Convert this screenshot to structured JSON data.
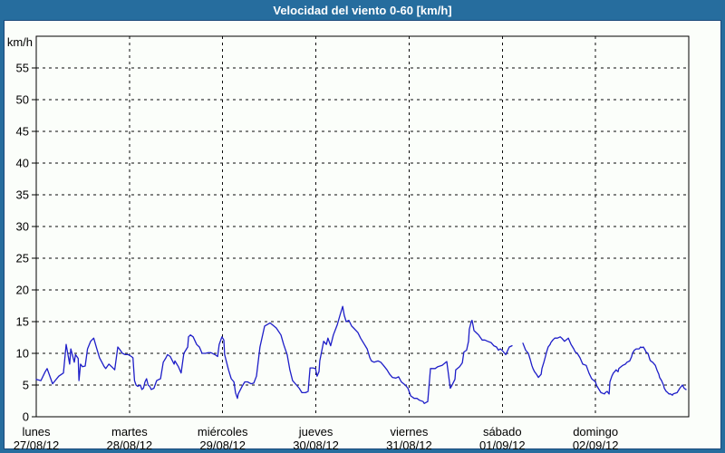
{
  "window": {
    "title": "Velocidad del viento 0-60 [km/h]"
  },
  "colors": {
    "titlebar_bg": "#266d9e",
    "window_border": "#266d9e",
    "content_bg": "#fbfefa",
    "frame_line": "#1b4a7a",
    "grid": "#0a0a0a",
    "series": "#1e1ec8",
    "title_text": "#ffffff",
    "label_text": "#000000"
  },
  "chart_data": {
    "type": "line",
    "title": "Velocidad del viento 0-60 [km/h]",
    "xlabel": "",
    "ylabel": "km/h",
    "ylim": [
      0,
      60
    ],
    "yticks": [
      0,
      5,
      10,
      15,
      20,
      25,
      30,
      35,
      40,
      45,
      50,
      55
    ],
    "x_unit": "hours",
    "xlim": [
      0,
      168
    ],
    "grid": "dashed",
    "legend": "none",
    "xticks": [
      {
        "hour": 0,
        "day": "lunes",
        "date": "27/08/12"
      },
      {
        "hour": 24,
        "day": "martes",
        "date": "28/08/12"
      },
      {
        "hour": 48,
        "day": "miércoles",
        "date": "29/08/12"
      },
      {
        "hour": 72,
        "day": "jueves",
        "date": "30/08/12"
      },
      {
        "hour": 96,
        "day": "viernes",
        "date": "31/08/12"
      },
      {
        "hour": 120,
        "day": "sábado",
        "date": "01/09/12"
      },
      {
        "hour": 144,
        "day": "domingo",
        "date": "02/09/12"
      }
    ],
    "series": [
      {
        "name": "velocidad del viento",
        "color": "#1e1ec8",
        "points": [
          [
            0,
            5.9
          ],
          [
            1.2,
            5.7
          ],
          [
            2.3,
            7.1
          ],
          [
            2.8,
            7.6
          ],
          [
            4.2,
            5.2
          ],
          [
            5.8,
            6.4
          ],
          [
            7,
            6.9
          ],
          [
            7.7,
            11.4
          ],
          [
            8.6,
            8.3
          ],
          [
            8.9,
            10.7
          ],
          [
            9.8,
            8.6
          ],
          [
            10.1,
            9.8
          ],
          [
            10.8,
            9.2
          ],
          [
            11,
            5.7
          ],
          [
            11.4,
            8.3
          ],
          [
            11.9,
            7.9
          ],
          [
            12.6,
            8
          ],
          [
            13.2,
            10.7
          ],
          [
            14,
            11.9
          ],
          [
            14.8,
            12.4
          ],
          [
            15.6,
            10.7
          ],
          [
            16.3,
            9.3
          ],
          [
            17.5,
            7.9
          ],
          [
            17.9,
            7.6
          ],
          [
            18.7,
            8.3
          ],
          [
            19.4,
            7.9
          ],
          [
            20.2,
            7.4
          ],
          [
            21,
            11
          ],
          [
            21.4,
            10.7
          ],
          [
            22.2,
            10
          ],
          [
            22.9,
            9.8
          ],
          [
            23.7,
            9.8
          ],
          [
            24.5,
            9.5
          ],
          [
            24.9,
            9.3
          ],
          [
            25.3,
            5.7
          ],
          [
            25.7,
            5
          ],
          [
            26.1,
            4.8
          ],
          [
            26.8,
            5
          ],
          [
            27.2,
            4.3
          ],
          [
            27.6,
            4.5
          ],
          [
            28,
            5.5
          ],
          [
            28.4,
            6
          ],
          [
            28.8,
            5
          ],
          [
            29.2,
            4.8
          ],
          [
            29.6,
            4.3
          ],
          [
            30.3,
            4.5
          ],
          [
            31,
            5.7
          ],
          [
            32,
            6
          ],
          [
            32.7,
            8.6
          ],
          [
            33.4,
            9.3
          ],
          [
            33.8,
            9.8
          ],
          [
            34.5,
            9.5
          ],
          [
            35.5,
            8.3
          ],
          [
            35.7,
            8.8
          ],
          [
            36.6,
            7.9
          ],
          [
            37.3,
            6.9
          ],
          [
            38,
            10
          ],
          [
            39,
            11
          ],
          [
            39.2,
            12.6
          ],
          [
            39.7,
            12.9
          ],
          [
            40.4,
            12.6
          ],
          [
            41.3,
            11.4
          ],
          [
            42,
            11
          ],
          [
            42.7,
            10
          ],
          [
            43.6,
            10
          ],
          [
            44.3,
            10.1
          ],
          [
            45,
            10.1
          ],
          [
            46,
            9.8
          ],
          [
            46.7,
            9.5
          ],
          [
            47.1,
            11.4
          ],
          [
            47.8,
            12.6
          ],
          [
            48.3,
            12.1
          ],
          [
            48.5,
            9.8
          ],
          [
            49.5,
            7.4
          ],
          [
            50.2,
            6
          ],
          [
            50.9,
            5.5
          ],
          [
            51.3,
            3.8
          ],
          [
            51.8,
            2.9
          ],
          [
            52,
            3.6
          ],
          [
            53,
            4.8
          ],
          [
            53.7,
            5.5
          ],
          [
            54.4,
            5.5
          ],
          [
            55.3,
            5.2
          ],
          [
            56,
            5.3
          ],
          [
            56.7,
            6.4
          ],
          [
            57.6,
            11
          ],
          [
            58.8,
            14.3
          ],
          [
            60.2,
            14.8
          ],
          [
            61.8,
            14
          ],
          [
            63,
            12.9
          ],
          [
            63.7,
            11.4
          ],
          [
            64.6,
            9.8
          ],
          [
            65.3,
            7.4
          ],
          [
            66,
            5.7
          ],
          [
            67,
            5
          ],
          [
            67.7,
            4.5
          ],
          [
            68.4,
            3.8
          ],
          [
            69.3,
            3.8
          ],
          [
            70,
            4
          ],
          [
            70.5,
            7.7
          ],
          [
            71.2,
            7.7
          ],
          [
            71.9,
            7.6
          ],
          [
            72.3,
            6.4
          ],
          [
            72.8,
            7.1
          ],
          [
            73,
            8.8
          ],
          [
            74,
            11.9
          ],
          [
            74.7,
            11.4
          ],
          [
            75.1,
            12.4
          ],
          [
            75.8,
            11.2
          ],
          [
            76.5,
            12.9
          ],
          [
            77.5,
            14.5
          ],
          [
            78.2,
            16
          ],
          [
            78.9,
            17.4
          ],
          [
            79.3,
            16
          ],
          [
            79.8,
            15
          ],
          [
            80.5,
            15.2
          ],
          [
            81.2,
            14.3
          ],
          [
            81.7,
            14
          ],
          [
            82.8,
            13.3
          ],
          [
            83.5,
            12.4
          ],
          [
            84.5,
            11.4
          ],
          [
            85.2,
            10.7
          ],
          [
            85.9,
            9.3
          ],
          [
            86.3,
            8.8
          ],
          [
            87,
            8.6
          ],
          [
            88,
            8.8
          ],
          [
            88.7,
            8.6
          ],
          [
            89.4,
            8.1
          ],
          [
            90.3,
            7.4
          ],
          [
            91,
            6.7
          ],
          [
            91.7,
            6.2
          ],
          [
            92.6,
            6.1
          ],
          [
            93.3,
            6.3
          ],
          [
            94,
            5.5
          ],
          [
            95,
            5
          ],
          [
            95.7,
            4.5
          ],
          [
            96.4,
            3.3
          ],
          [
            97.3,
            2.9
          ],
          [
            98,
            2.9
          ],
          [
            98.7,
            2.6
          ],
          [
            99.6,
            2.4
          ],
          [
            99.9,
            2.1
          ],
          [
            100.8,
            2.4
          ],
          [
            101.5,
            7.6
          ],
          [
            102.7,
            7.6
          ],
          [
            103.4,
            7.9
          ],
          [
            104.5,
            8.1
          ],
          [
            105.5,
            8.6
          ],
          [
            105.7,
            8.7
          ],
          [
            106.6,
            4.5
          ],
          [
            106.9,
            4.8
          ],
          [
            107.8,
            5.9
          ],
          [
            108,
            7.4
          ],
          [
            109,
            7.9
          ],
          [
            109.7,
            8.5
          ],
          [
            110.1,
            10.2
          ],
          [
            110.8,
            10.5
          ],
          [
            111.3,
            11.9
          ],
          [
            111.5,
            13.8
          ],
          [
            112,
            15
          ],
          [
            112.2,
            15.2
          ],
          [
            112.5,
            14.3
          ],
          [
            112.7,
            13.6
          ],
          [
            113.2,
            13.3
          ],
          [
            113.9,
            12.9
          ],
          [
            114.8,
            12.1
          ],
          [
            115.5,
            12.1
          ],
          [
            116.2,
            11.9
          ],
          [
            117.1,
            11.7
          ],
          [
            117.8,
            11.2
          ],
          [
            118.5,
            11
          ],
          [
            119,
            10.5
          ],
          [
            119.5,
            10.7
          ],
          [
            119.9,
            10.5
          ],
          [
            120.9,
            9.8
          ],
          [
            121.8,
            11
          ],
          [
            122.5,
            11.2
          ],
          null,
          [
            125.3,
            11.6
          ],
          [
            126,
            10.5
          ],
          [
            126.7,
            10
          ],
          [
            127.2,
            9
          ],
          [
            127.6,
            8.1
          ],
          [
            127.9,
            7.6
          ],
          [
            128.3,
            7.1
          ],
          [
            128.8,
            6.7
          ],
          [
            129.3,
            6.2
          ],
          [
            130,
            6.7
          ],
          [
            130.2,
            7.6
          ],
          [
            130.7,
            8.6
          ],
          [
            131.1,
            9.5
          ],
          [
            131.4,
            10.2
          ],
          [
            131.8,
            11
          ],
          [
            132.3,
            11.4
          ],
          [
            132.5,
            11.7
          ],
          [
            133,
            12.1
          ],
          [
            133.5,
            12.4
          ],
          [
            134.2,
            12.4
          ],
          [
            134.9,
            12.6
          ],
          [
            135.3,
            12.4
          ],
          [
            136,
            11.9
          ],
          [
            137,
            12.4
          ],
          [
            137.2,
            12.1
          ],
          [
            137.7,
            11.4
          ],
          [
            138.1,
            11
          ],
          [
            138.4,
            10.7
          ],
          [
            138.8,
            10.2
          ],
          [
            139.3,
            10
          ],
          [
            139.5,
            9.8
          ],
          [
            140,
            9.3
          ],
          [
            140.7,
            8.3
          ],
          [
            141.6,
            8.1
          ],
          [
            142.3,
            6.9
          ],
          [
            143,
            6
          ],
          [
            144,
            5.5
          ],
          [
            144.2,
            5
          ],
          [
            144.7,
            4.5
          ],
          [
            145.4,
            3.8
          ],
          [
            146.3,
            3.6
          ],
          [
            146.5,
            3.8
          ],
          [
            147,
            4
          ],
          [
            147.5,
            3.6
          ],
          [
            147.7,
            5.5
          ],
          [
            148.2,
            6.4
          ],
          [
            148.6,
            6.9
          ],
          [
            148.9,
            7.1
          ],
          [
            149.3,
            7.4
          ],
          [
            149.8,
            7.1
          ],
          [
            150,
            7.6
          ],
          [
            151,
            8.1
          ],
          [
            151.7,
            8.3
          ],
          [
            152.1,
            8.6
          ],
          [
            152.8,
            8.8
          ],
          [
            153.3,
            9.5
          ],
          [
            153.5,
            10
          ],
          [
            154,
            10.5
          ],
          [
            154.5,
            10.7
          ],
          [
            155.2,
            10.7
          ],
          [
            155.6,
            11
          ],
          [
            155.9,
            10.9
          ],
          [
            156.3,
            11
          ],
          [
            156.8,
            10.5
          ],
          [
            157,
            10.2
          ],
          [
            157.5,
            10
          ],
          [
            158,
            9
          ],
          [
            158.2,
            8.8
          ],
          [
            158.7,
            8.6
          ],
          [
            159.4,
            8.1
          ],
          [
            159.8,
            7.4
          ],
          [
            160.3,
            6.7
          ],
          [
            160.5,
            6.2
          ],
          [
            161,
            5.7
          ],
          [
            161.5,
            5
          ],
          [
            161.7,
            4.5
          ],
          [
            162.2,
            4
          ],
          [
            162.6,
            3.8
          ],
          [
            162.9,
            3.6
          ],
          [
            163.3,
            3.6
          ],
          [
            163.8,
            3.4
          ],
          [
            164,
            3.6
          ],
          [
            165,
            3.8
          ],
          [
            165.2,
            4
          ],
          [
            165.7,
            4.5
          ],
          [
            166.1,
            4.8
          ],
          [
            166.4,
            5
          ],
          [
            166.8,
            4.5
          ],
          [
            167.3,
            4.3
          ]
        ]
      }
    ]
  }
}
